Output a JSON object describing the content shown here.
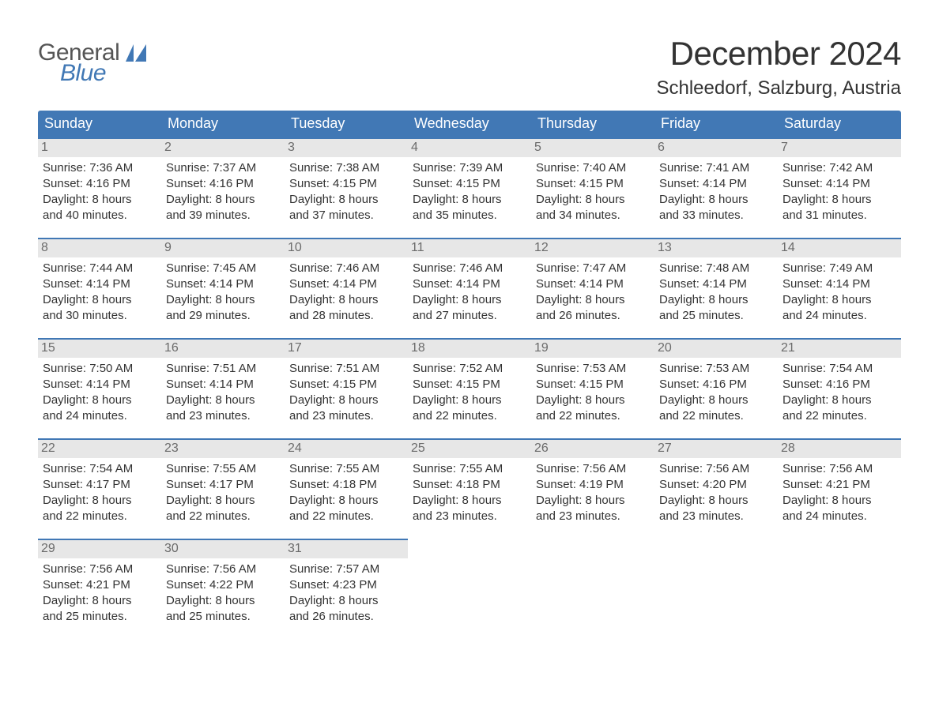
{
  "brand": {
    "word1": "General",
    "word2": "Blue"
  },
  "title": {
    "month": "December 2024",
    "location": "Schleedorf, Salzburg, Austria"
  },
  "colors": {
    "brand_blue": "#4178b5",
    "header_bg": "#4178b5",
    "header_text": "#ffffff",
    "daynum_bg": "#e7e7e7",
    "daynum_text": "#6b6b6b",
    "week_rule": "#4178b5",
    "body_text": "#333333",
    "page_bg": "#ffffff"
  },
  "fonts": {
    "title_size_pt": 32,
    "location_size_pt": 18,
    "header_size_pt": 14,
    "body_size_pt": 11
  },
  "calendar": {
    "type": "table",
    "columns": [
      "Sunday",
      "Monday",
      "Tuesday",
      "Wednesday",
      "Thursday",
      "Friday",
      "Saturday"
    ],
    "weeks": [
      [
        {
          "n": "1",
          "sunrise": "Sunrise: 7:36 AM",
          "sunset": "Sunset: 4:16 PM",
          "day1": "Daylight: 8 hours",
          "day2": "and 40 minutes."
        },
        {
          "n": "2",
          "sunrise": "Sunrise: 7:37 AM",
          "sunset": "Sunset: 4:16 PM",
          "day1": "Daylight: 8 hours",
          "day2": "and 39 minutes."
        },
        {
          "n": "3",
          "sunrise": "Sunrise: 7:38 AM",
          "sunset": "Sunset: 4:15 PM",
          "day1": "Daylight: 8 hours",
          "day2": "and 37 minutes."
        },
        {
          "n": "4",
          "sunrise": "Sunrise: 7:39 AM",
          "sunset": "Sunset: 4:15 PM",
          "day1": "Daylight: 8 hours",
          "day2": "and 35 minutes."
        },
        {
          "n": "5",
          "sunrise": "Sunrise: 7:40 AM",
          "sunset": "Sunset: 4:15 PM",
          "day1": "Daylight: 8 hours",
          "day2": "and 34 minutes."
        },
        {
          "n": "6",
          "sunrise": "Sunrise: 7:41 AM",
          "sunset": "Sunset: 4:14 PM",
          "day1": "Daylight: 8 hours",
          "day2": "and 33 minutes."
        },
        {
          "n": "7",
          "sunrise": "Sunrise: 7:42 AM",
          "sunset": "Sunset: 4:14 PM",
          "day1": "Daylight: 8 hours",
          "day2": "and 31 minutes."
        }
      ],
      [
        {
          "n": "8",
          "sunrise": "Sunrise: 7:44 AM",
          "sunset": "Sunset: 4:14 PM",
          "day1": "Daylight: 8 hours",
          "day2": "and 30 minutes."
        },
        {
          "n": "9",
          "sunrise": "Sunrise: 7:45 AM",
          "sunset": "Sunset: 4:14 PM",
          "day1": "Daylight: 8 hours",
          "day2": "and 29 minutes."
        },
        {
          "n": "10",
          "sunrise": "Sunrise: 7:46 AM",
          "sunset": "Sunset: 4:14 PM",
          "day1": "Daylight: 8 hours",
          "day2": "and 28 minutes."
        },
        {
          "n": "11",
          "sunrise": "Sunrise: 7:46 AM",
          "sunset": "Sunset: 4:14 PM",
          "day1": "Daylight: 8 hours",
          "day2": "and 27 minutes."
        },
        {
          "n": "12",
          "sunrise": "Sunrise: 7:47 AM",
          "sunset": "Sunset: 4:14 PM",
          "day1": "Daylight: 8 hours",
          "day2": "and 26 minutes."
        },
        {
          "n": "13",
          "sunrise": "Sunrise: 7:48 AM",
          "sunset": "Sunset: 4:14 PM",
          "day1": "Daylight: 8 hours",
          "day2": "and 25 minutes."
        },
        {
          "n": "14",
          "sunrise": "Sunrise: 7:49 AM",
          "sunset": "Sunset: 4:14 PM",
          "day1": "Daylight: 8 hours",
          "day2": "and 24 minutes."
        }
      ],
      [
        {
          "n": "15",
          "sunrise": "Sunrise: 7:50 AM",
          "sunset": "Sunset: 4:14 PM",
          "day1": "Daylight: 8 hours",
          "day2": "and 24 minutes."
        },
        {
          "n": "16",
          "sunrise": "Sunrise: 7:51 AM",
          "sunset": "Sunset: 4:14 PM",
          "day1": "Daylight: 8 hours",
          "day2": "and 23 minutes."
        },
        {
          "n": "17",
          "sunrise": "Sunrise: 7:51 AM",
          "sunset": "Sunset: 4:15 PM",
          "day1": "Daylight: 8 hours",
          "day2": "and 23 minutes."
        },
        {
          "n": "18",
          "sunrise": "Sunrise: 7:52 AM",
          "sunset": "Sunset: 4:15 PM",
          "day1": "Daylight: 8 hours",
          "day2": "and 22 minutes."
        },
        {
          "n": "19",
          "sunrise": "Sunrise: 7:53 AM",
          "sunset": "Sunset: 4:15 PM",
          "day1": "Daylight: 8 hours",
          "day2": "and 22 minutes."
        },
        {
          "n": "20",
          "sunrise": "Sunrise: 7:53 AM",
          "sunset": "Sunset: 4:16 PM",
          "day1": "Daylight: 8 hours",
          "day2": "and 22 minutes."
        },
        {
          "n": "21",
          "sunrise": "Sunrise: 7:54 AM",
          "sunset": "Sunset: 4:16 PM",
          "day1": "Daylight: 8 hours",
          "day2": "and 22 minutes."
        }
      ],
      [
        {
          "n": "22",
          "sunrise": "Sunrise: 7:54 AM",
          "sunset": "Sunset: 4:17 PM",
          "day1": "Daylight: 8 hours",
          "day2": "and 22 minutes."
        },
        {
          "n": "23",
          "sunrise": "Sunrise: 7:55 AM",
          "sunset": "Sunset: 4:17 PM",
          "day1": "Daylight: 8 hours",
          "day2": "and 22 minutes."
        },
        {
          "n": "24",
          "sunrise": "Sunrise: 7:55 AM",
          "sunset": "Sunset: 4:18 PM",
          "day1": "Daylight: 8 hours",
          "day2": "and 22 minutes."
        },
        {
          "n": "25",
          "sunrise": "Sunrise: 7:55 AM",
          "sunset": "Sunset: 4:18 PM",
          "day1": "Daylight: 8 hours",
          "day2": "and 23 minutes."
        },
        {
          "n": "26",
          "sunrise": "Sunrise: 7:56 AM",
          "sunset": "Sunset: 4:19 PM",
          "day1": "Daylight: 8 hours",
          "day2": "and 23 minutes."
        },
        {
          "n": "27",
          "sunrise": "Sunrise: 7:56 AM",
          "sunset": "Sunset: 4:20 PM",
          "day1": "Daylight: 8 hours",
          "day2": "and 23 minutes."
        },
        {
          "n": "28",
          "sunrise": "Sunrise: 7:56 AM",
          "sunset": "Sunset: 4:21 PM",
          "day1": "Daylight: 8 hours",
          "day2": "and 24 minutes."
        }
      ],
      [
        {
          "n": "29",
          "sunrise": "Sunrise: 7:56 AM",
          "sunset": "Sunset: 4:21 PM",
          "day1": "Daylight: 8 hours",
          "day2": "and 25 minutes."
        },
        {
          "n": "30",
          "sunrise": "Sunrise: 7:56 AM",
          "sunset": "Sunset: 4:22 PM",
          "day1": "Daylight: 8 hours",
          "day2": "and 25 minutes."
        },
        {
          "n": "31",
          "sunrise": "Sunrise: 7:57 AM",
          "sunset": "Sunset: 4:23 PM",
          "day1": "Daylight: 8 hours",
          "day2": "and 26 minutes."
        },
        null,
        null,
        null,
        null
      ]
    ]
  }
}
